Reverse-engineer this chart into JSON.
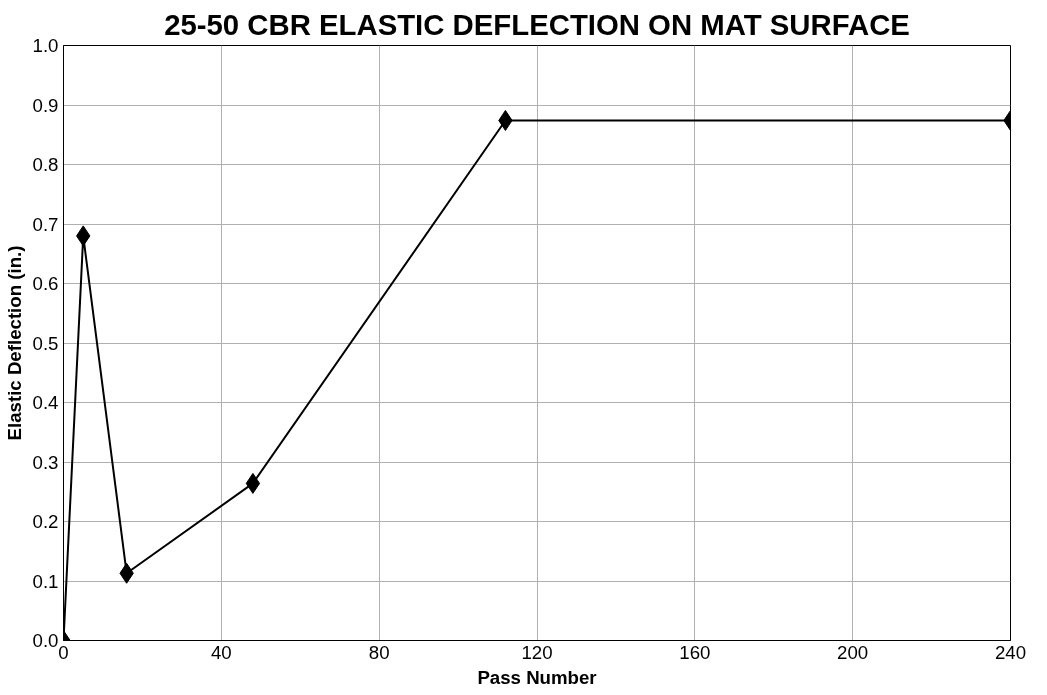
{
  "chart_data": {
    "type": "line",
    "title": "25-50 CBR ELASTIC DEFLECTION ON MAT SURFACE",
    "xlabel": "Pass Number",
    "ylabel": "Elastic Deflection (in.)",
    "x": [
      0,
      5,
      16,
      48,
      112,
      240
    ],
    "series": [
      {
        "color": "#000000",
        "values": [
          0,
          0.68,
          0.113,
          0.264,
          0.874,
          0.874
        ]
      }
    ],
    "xlim": [
      0,
      240
    ],
    "xticks": [
      0,
      40,
      80,
      120,
      160,
      200,
      240
    ],
    "ylim": [
      0,
      1.0
    ],
    "yticks": [
      {
        "value": 0,
        "label": "0.0"
      },
      0.1,
      0.2,
      0.3,
      0.4,
      0.5,
      0.6,
      0.7,
      0.8,
      0.9,
      {
        "value": 1.0,
        "label": "1.0"
      }
    ],
    "grid": true,
    "marker": "diamond",
    "line_style": "solid"
  }
}
